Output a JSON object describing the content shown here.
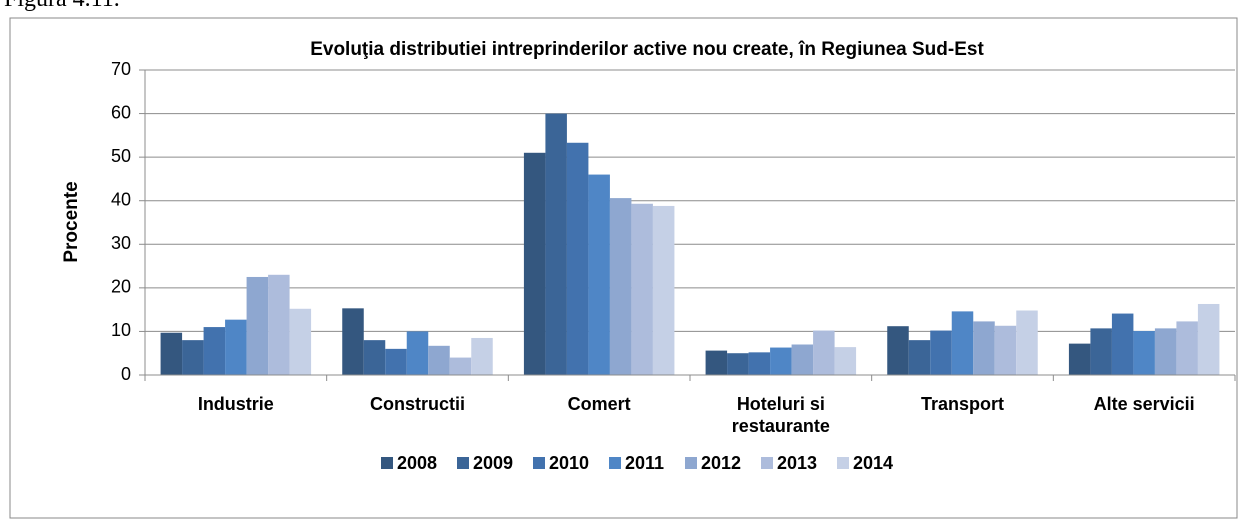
{
  "caption": "Figura 4.11.",
  "chart_data": {
    "type": "bar",
    "title": "Evoluţia distributiei intreprinderilor active nou create, în Regiunea Sud-Est",
    "ylabel": "Procente",
    "categories": [
      "Industrie",
      "Constructii",
      "Comert",
      "Hoteluri si restaurante",
      "Transport",
      "Alte servicii"
    ],
    "series": [
      {
        "name": "2008",
        "color": "#34577f",
        "values": [
          9.7,
          15.3,
          51,
          5.6,
          11.2,
          7.2
        ]
      },
      {
        "name": "2009",
        "color": "#3b6597",
        "values": [
          8,
          8,
          60,
          5,
          8,
          10.7
        ]
      },
      {
        "name": "2010",
        "color": "#4272ae",
        "values": [
          11,
          6,
          53.3,
          5.2,
          10.2,
          14.1
        ]
      },
      {
        "name": "2011",
        "color": "#4f86c6",
        "values": [
          12.7,
          10,
          46,
          6.3,
          14.6,
          10.1
        ]
      },
      {
        "name": "2012",
        "color": "#8ea7d0",
        "values": [
          22.5,
          6.7,
          40.6,
          7,
          12.3,
          10.7
        ]
      },
      {
        "name": "2013",
        "color": "#adbcdc",
        "values": [
          23,
          4,
          39.3,
          10.2,
          11.3,
          12.3
        ]
      },
      {
        "name": "2014",
        "color": "#c5d0e6",
        "values": [
          15.2,
          8.5,
          38.8,
          6.4,
          14.8,
          16.3
        ]
      }
    ],
    "ylim": [
      0,
      70
    ],
    "yticks": [
      0,
      10,
      20,
      30,
      40,
      50,
      60,
      70
    ],
    "grid": true,
    "legend": "bottom"
  }
}
